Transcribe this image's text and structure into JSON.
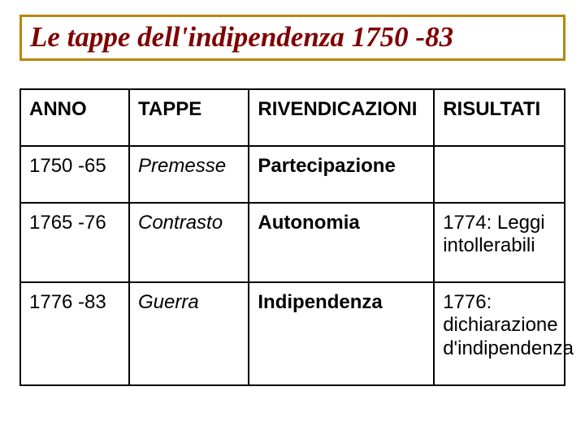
{
  "slide": {
    "title": "Le tappe dell'indipendenza 1750 -83",
    "title_border_color": "#b8860b",
    "title_text_color": "#800000",
    "background_color": "#ffffff"
  },
  "table": {
    "border_color": "#000000",
    "columns": [
      {
        "key": "anno",
        "label": "ANNO"
      },
      {
        "key": "tappe",
        "label": "TAPPE"
      },
      {
        "key": "riv",
        "label": "RIVENDICAZIONI"
      },
      {
        "key": "ris",
        "label": "RISULTATI"
      }
    ],
    "rows": [
      {
        "anno": "1750 -65",
        "tappe": "Premesse",
        "riv": "Partecipazione",
        "ris": ""
      },
      {
        "anno": "1765 -76",
        "tappe": "Contrasto",
        "riv": "Autonomia",
        "ris": "1774: Leggi intollerabili"
      },
      {
        "anno": "1776 -83",
        "tappe": "Guerra",
        "riv": "Indipendenza",
        "ris": "1776: dichiarazione d'indipendenza"
      }
    ],
    "header_fontsize": 24,
    "cell_fontsize": 24,
    "result_fontsize": 19,
    "col_widths_pct": [
      20,
      22,
      34,
      24
    ]
  }
}
